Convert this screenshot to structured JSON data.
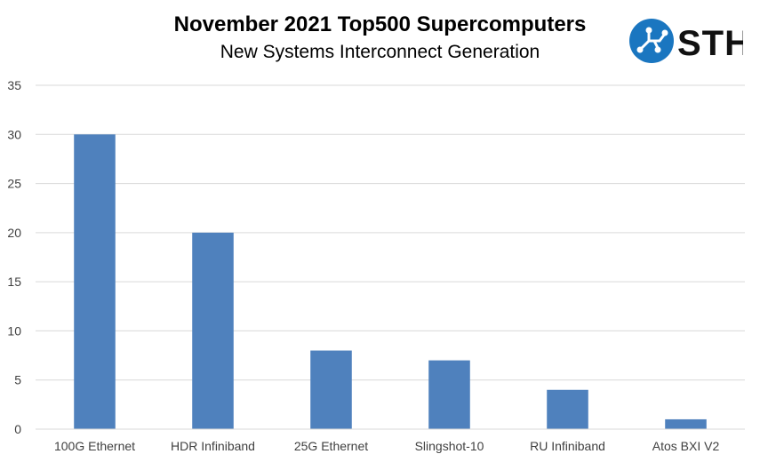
{
  "logo": {
    "text": "STH",
    "icon": "circuit-logo-icon",
    "accent": "#1a76c0"
  },
  "chart_data": {
    "type": "bar",
    "title": "November 2021 Top500 Supercomputers",
    "subtitle": "New Systems Interconnect Generation",
    "xlabel": "",
    "ylabel": "",
    "categories": [
      "100G Ethernet",
      "HDR Infiniband",
      "25G Ethernet",
      "Slingshot-10",
      "RU Infiniband",
      "Atos BXI V2"
    ],
    "values": [
      30,
      20,
      8,
      7,
      4,
      1
    ],
    "ylim": [
      0,
      35
    ],
    "yticks": [
      0,
      5,
      10,
      15,
      20,
      25,
      30,
      35
    ],
    "grid": true,
    "legend": "none",
    "bar_color": "#4f81bd"
  }
}
